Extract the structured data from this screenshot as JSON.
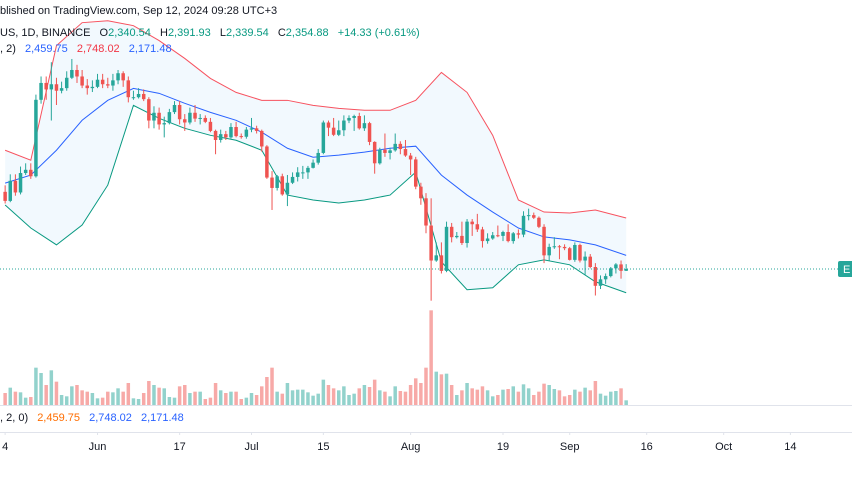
{
  "chart_data": {
    "type": "candlestick",
    "source_note": "blished on TradingView.com, Sep 12, 2024 09:28 UTC+3",
    "symbol": "US, 1D, BINANCE",
    "ohlc_legend": [
      {
        "label": "O",
        "value": "2,340.54"
      },
      {
        "label": "H",
        "value": "2,391.93"
      },
      {
        "label": "L",
        "value": "2,339.54"
      },
      {
        "label": "C",
        "value": "2,354.88"
      }
    ],
    "change": "+14.33 (+0.61%)",
    "bands_legend": {
      "params": ", 2)",
      "values": [
        "2,459.75",
        "2,748.02",
        "2,171.48"
      ]
    },
    "lower_legend": {
      "params": ", 2, 0)",
      "values": [
        "2,459.75",
        "2,748.02",
        "2,171.48"
      ]
    },
    "last_price_label": "E",
    "up_color": "#26a69a",
    "down_color": "#ef5350",
    "xlim": [
      "2024-05-13",
      "2024-10-26"
    ],
    "ylim": [
      2100,
      4430
    ],
    "vlim": [
      0,
      1500000
    ],
    "xticks": [
      {
        "value": "2024-05-14",
        "label": "4"
      },
      {
        "value": "2024-06-01",
        "label": "Jun"
      },
      {
        "value": "2024-06-17",
        "label": "17"
      },
      {
        "value": "2024-07-01",
        "label": "Jul"
      },
      {
        "value": "2024-07-15",
        "label": "15"
      },
      {
        "value": "2024-08-01",
        "label": "Aug"
      },
      {
        "value": "2024-08-19",
        "label": "19"
      },
      {
        "value": "2024-09-01",
        "label": "Sep"
      },
      {
        "value": "2024-09-16",
        "label": "16"
      },
      {
        "value": "2024-10-01",
        "label": "Oct"
      },
      {
        "value": "2024-10-14",
        "label": "14"
      }
    ],
    "x": [
      "2024-05-14",
      "2024-05-15",
      "2024-05-16",
      "2024-05-17",
      "2024-05-18",
      "2024-05-19",
      "2024-05-20",
      "2024-05-21",
      "2024-05-22",
      "2024-05-23",
      "2024-05-24",
      "2024-05-25",
      "2024-05-26",
      "2024-05-27",
      "2024-05-28",
      "2024-05-29",
      "2024-05-30",
      "2024-05-31",
      "2024-06-01",
      "2024-06-02",
      "2024-06-03",
      "2024-06-04",
      "2024-06-05",
      "2024-06-06",
      "2024-06-07",
      "2024-06-08",
      "2024-06-09",
      "2024-06-10",
      "2024-06-11",
      "2024-06-12",
      "2024-06-13",
      "2024-06-14",
      "2024-06-15",
      "2024-06-16",
      "2024-06-17",
      "2024-06-18",
      "2024-06-19",
      "2024-06-20",
      "2024-06-21",
      "2024-06-22",
      "2024-06-23",
      "2024-06-24",
      "2024-06-25",
      "2024-06-26",
      "2024-06-27",
      "2024-06-28",
      "2024-06-29",
      "2024-06-30",
      "2024-07-01",
      "2024-07-02",
      "2024-07-03",
      "2024-07-04",
      "2024-07-05",
      "2024-07-06",
      "2024-07-07",
      "2024-07-08",
      "2024-07-09",
      "2024-07-10",
      "2024-07-11",
      "2024-07-12",
      "2024-07-13",
      "2024-07-14",
      "2024-07-15",
      "2024-07-16",
      "2024-07-17",
      "2024-07-18",
      "2024-07-19",
      "2024-07-20",
      "2024-07-21",
      "2024-07-22",
      "2024-07-23",
      "2024-07-24",
      "2024-07-25",
      "2024-07-26",
      "2024-07-27",
      "2024-07-28",
      "2024-07-29",
      "2024-07-30",
      "2024-07-31",
      "2024-08-01",
      "2024-08-02",
      "2024-08-03",
      "2024-08-04",
      "2024-08-05",
      "2024-08-06",
      "2024-08-07",
      "2024-08-08",
      "2024-08-09",
      "2024-08-10",
      "2024-08-11",
      "2024-08-12",
      "2024-08-13",
      "2024-08-14",
      "2024-08-15",
      "2024-08-16",
      "2024-08-17",
      "2024-08-18",
      "2024-08-19",
      "2024-08-20",
      "2024-08-21",
      "2024-08-22",
      "2024-08-23",
      "2024-08-24",
      "2024-08-25",
      "2024-08-26",
      "2024-08-27",
      "2024-08-28",
      "2024-08-29",
      "2024-08-30",
      "2024-08-31",
      "2024-09-01",
      "2024-09-02",
      "2024-09-03",
      "2024-09-04",
      "2024-09-05",
      "2024-09-06",
      "2024-09-07",
      "2024-09-08",
      "2024-09-09",
      "2024-09-10",
      "2024-09-11",
      "2024-09-12"
    ],
    "open": [
      2950,
      2880,
      3035,
      2945,
      3095,
      3120,
      3070,
      3660,
      3790,
      3740,
      3780,
      3730,
      3750,
      3830,
      3890,
      3840,
      3770,
      3750,
      3760,
      3815,
      3780,
      3770,
      3810,
      3865,
      3810,
      3680,
      3680,
      3705,
      3665,
      3500,
      3560,
      3470,
      3480,
      3565,
      3620,
      3510,
      3485,
      3560,
      3515,
      3520,
      3490,
      3420,
      3350,
      3395,
      3370,
      3450,
      3380,
      3375,
      3430,
      3440,
      3420,
      3300,
      3060,
      2980,
      3070,
      2930,
      3020,
      3065,
      3100,
      3100,
      3135,
      3175,
      3250,
      3485,
      3445,
      3390,
      3425,
      3500,
      3520,
      3535,
      3440,
      3480,
      3335,
      3170,
      3275,
      3250,
      3270,
      3320,
      3280,
      3230,
      3200,
      2990,
      2900,
      2690,
      2420,
      2460,
      2340,
      2680,
      2600,
      2610,
      2555,
      2720,
      2700,
      2660,
      2570,
      2590,
      2615,
      2610,
      2640,
      2570,
      2630,
      2620,
      2765,
      2770,
      2750,
      2680,
      2460,
      2525,
      2530,
      2525,
      2515,
      2425,
      2540,
      2420,
      2450,
      2370,
      2225,
      2275,
      2300,
      2360,
      2390,
      2340.54
    ],
    "high": [
      3000,
      3085,
      3085,
      3145,
      3170,
      3170,
      3700,
      3840,
      3840,
      3950,
      3830,
      3800,
      3880,
      3975,
      3930,
      3890,
      3820,
      3810,
      3860,
      3860,
      3830,
      3860,
      3890,
      3880,
      3840,
      3730,
      3750,
      3740,
      3680,
      3610,
      3600,
      3530,
      3590,
      3650,
      3650,
      3550,
      3600,
      3620,
      3550,
      3540,
      3520,
      3430,
      3430,
      3420,
      3480,
      3490,
      3400,
      3450,
      3520,
      3460,
      3430,
      3310,
      3110,
      3080,
      3090,
      3080,
      3100,
      3140,
      3150,
      3150,
      3200,
      3280,
      3500,
      3500,
      3520,
      3500,
      3540,
      3540,
      3545,
      3560,
      3540,
      3490,
      3340,
      3290,
      3400,
      3290,
      3400,
      3340,
      3350,
      3250,
      3220,
      3020,
      2940,
      2900,
      2560,
      2560,
      2720,
      2710,
      2640,
      2720,
      2740,
      2740,
      2780,
      2680,
      2630,
      2640,
      2690,
      2650,
      2700,
      2640,
      2660,
      2800,
      2820,
      2790,
      2760,
      2700,
      2550,
      2600,
      2540,
      2545,
      2525,
      2560,
      2550,
      2490,
      2470,
      2400,
      2305,
      2320,
      2370,
      2400,
      2420,
      2391.93
    ],
    "low": [
      2860,
      2870,
      2920,
      2930,
      3080,
      3050,
      3060,
      3630,
      3660,
      3500,
      3620,
      3710,
      3730,
      3820,
      3790,
      3750,
      3700,
      3720,
      3750,
      3750,
      3750,
      3730,
      3780,
      3760,
      3640,
      3660,
      3670,
      3650,
      3440,
      3440,
      3430,
      3370,
      3470,
      3550,
      3470,
      3420,
      3470,
      3490,
      3470,
      3480,
      3410,
      3240,
      3330,
      3350,
      3360,
      3370,
      3360,
      3360,
      3410,
      3400,
      3260,
      3050,
      2810,
      2960,
      2920,
      2840,
      3010,
      3030,
      3050,
      3050,
      3130,
      3160,
      3240,
      3380,
      3380,
      3380,
      3380,
      3480,
      3420,
      3430,
      3420,
      3310,
      3090,
      3160,
      3220,
      3200,
      3260,
      3240,
      3220,
      3080,
      2970,
      2850,
      2630,
      2110,
      2410,
      2320,
      2330,
      2560,
      2590,
      2540,
      2520,
      2610,
      2640,
      2520,
      2550,
      2580,
      2600,
      2570,
      2560,
      2550,
      2590,
      2600,
      2730,
      2740,
      2670,
      2400,
      2420,
      2510,
      2430,
      2500,
      2420,
      2410,
      2405,
      2310,
      2360,
      2150,
      2200,
      2240,
      2290,
      2320,
      2280,
      2339.54
    ],
    "close": [
      2880,
      3035,
      2945,
      3095,
      3120,
      3070,
      3660,
      3790,
      3740,
      3780,
      3730,
      3750,
      3830,
      3890,
      3840,
      3770,
      3750,
      3760,
      3815,
      3780,
      3770,
      3810,
      3865,
      3810,
      3680,
      3680,
      3705,
      3665,
      3500,
      3560,
      3470,
      3480,
      3565,
      3620,
      3510,
      3485,
      3560,
      3515,
      3520,
      3490,
      3420,
      3350,
      3395,
      3370,
      3450,
      3380,
      3375,
      3430,
      3440,
      3420,
      3300,
      3060,
      2980,
      3070,
      2930,
      3020,
      3065,
      3100,
      3100,
      3135,
      3175,
      3250,
      3485,
      3445,
      3390,
      3425,
      3500,
      3520,
      3535,
      3440,
      3480,
      3335,
      3170,
      3275,
      3250,
      3270,
      3320,
      3280,
      3230,
      3200,
      2990,
      2900,
      2690,
      2420,
      2460,
      2340,
      2680,
      2600,
      2610,
      2555,
      2720,
      2700,
      2660,
      2570,
      2590,
      2615,
      2610,
      2640,
      2570,
      2630,
      2620,
      2765,
      2770,
      2750,
      2680,
      2460,
      2525,
      2530,
      2525,
      2515,
      2425,
      2540,
      2420,
      2450,
      2370,
      2225,
      2275,
      2300,
      2360,
      2390,
      2340.55,
      2354.88
    ],
    "volume": [
      180000,
      260000,
      200000,
      190000,
      110000,
      120000,
      560000,
      480000,
      300000,
      520000,
      350000,
      150000,
      130000,
      280000,
      300000,
      220000,
      200000,
      180000,
      100000,
      110000,
      200000,
      190000,
      250000,
      200000,
      330000,
      100000,
      90000,
      180000,
      360000,
      300000,
      260000,
      250000,
      120000,
      110000,
      280000,
      300000,
      180000,
      200000,
      200000,
      90000,
      110000,
      330000,
      220000,
      180000,
      200000,
      200000,
      90000,
      110000,
      180000,
      150000,
      280000,
      420000,
      560000,
      200000,
      170000,
      330000,
      220000,
      230000,
      230000,
      190000,
      140000,
      170000,
      380000,
      300000,
      250000,
      220000,
      280000,
      150000,
      170000,
      250000,
      300000,
      270000,
      380000,
      220000,
      200000,
      130000,
      280000,
      210000,
      200000,
      300000,
      400000,
      330000,
      560000,
      1420000,
      500000,
      460000,
      470000,
      300000,
      150000,
      220000,
      330000,
      250000,
      230000,
      280000,
      220000,
      130000,
      150000,
      230000,
      240000,
      280000,
      200000,
      310000,
      250000,
      150000,
      200000,
      320000,
      300000,
      240000,
      220000,
      130000,
      150000,
      230000,
      200000,
      260000,
      220000,
      360000,
      170000,
      140000,
      200000,
      210000,
      250000,
      70000
    ],
    "bands": {
      "x": [
        "2024-05-14",
        "2024-05-19",
        "2024-05-24",
        "2024-05-29",
        "2024-06-03",
        "2024-06-08",
        "2024-06-13",
        "2024-06-18",
        "2024-06-23",
        "2024-06-28",
        "2024-07-03",
        "2024-07-08",
        "2024-07-13",
        "2024-07-18",
        "2024-07-23",
        "2024-07-28",
        "2024-08-02",
        "2024-08-07",
        "2024-08-12",
        "2024-08-17",
        "2024-08-22",
        "2024-08-27",
        "2024-09-01",
        "2024-09-06",
        "2024-09-12"
      ],
      "upper": [
        3271,
        3194,
        4078,
        4255,
        4270,
        4232,
        4117,
        3979,
        3825,
        3717,
        3656,
        3656,
        3617,
        3594,
        3579,
        3579,
        3656,
        3871,
        3717,
        3386,
        2887,
        2794,
        2787,
        2810,
        2748.02
      ],
      "middle": [
        3017,
        3079,
        3271,
        3502,
        3656,
        3748,
        3710,
        3633,
        3563,
        3502,
        3410,
        3286,
        3217,
        3233,
        3256,
        3286,
        3302,
        3079,
        2925,
        2794,
        2671,
        2602,
        2579,
        2541,
        2459.75
      ],
      "lower": [
        2848,
        2671,
        2541,
        2694,
        3002,
        3617,
        3517,
        3440,
        3386,
        3348,
        3271,
        2925,
        2887,
        2864,
        2887,
        2925,
        3102,
        2410,
        2195,
        2210,
        2387,
        2425,
        2387,
        2256,
        2171.48
      ],
      "upper_color": "#f7525f",
      "middle_color": "#2962ff",
      "lower_color": "#089981",
      "fill_color": "#2196f3"
    }
  }
}
